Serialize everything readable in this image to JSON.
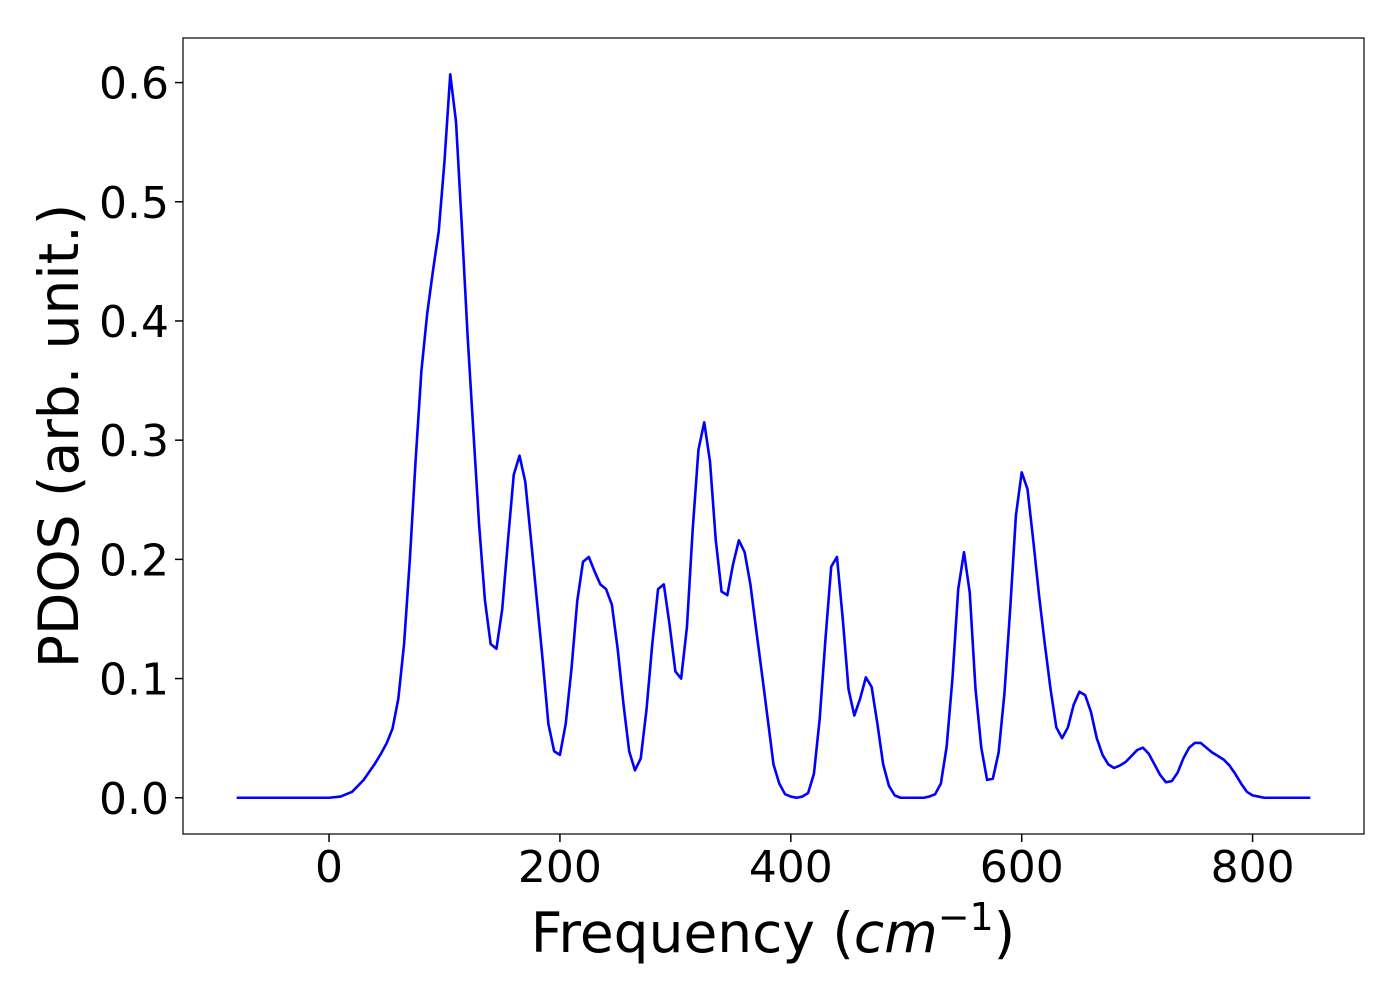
{
  "chart_data": {
    "type": "line",
    "x_label_parts": [
      "Frequency (",
      "cm",
      "−1",
      ")"
    ],
    "y_label": "PDOS (arb. unit.)",
    "x": [
      -80,
      0,
      10,
      20,
      30,
      40,
      45,
      50,
      55,
      60,
      65,
      70,
      75,
      80,
      85,
      90,
      95,
      100,
      105,
      110,
      115,
      120,
      125,
      130,
      135,
      140,
      145,
      150,
      155,
      160,
      165,
      170,
      175,
      180,
      185,
      190,
      195,
      200,
      205,
      210,
      215,
      220,
      225,
      230,
      235,
      240,
      245,
      250,
      255,
      260,
      265,
      270,
      275,
      280,
      285,
      290,
      295,
      300,
      305,
      310,
      315,
      320,
      325,
      330,
      335,
      340,
      345,
      350,
      355,
      360,
      365,
      370,
      375,
      380,
      385,
      390,
      395,
      400,
      405,
      410,
      415,
      420,
      425,
      430,
      435,
      440,
      445,
      450,
      455,
      460,
      465,
      470,
      475,
      480,
      485,
      490,
      495,
      515,
      520,
      525,
      530,
      535,
      540,
      545,
      550,
      555,
      560,
      565,
      570,
      575,
      580,
      585,
      590,
      595,
      600,
      605,
      610,
      615,
      620,
      625,
      630,
      635,
      640,
      645,
      650,
      655,
      660,
      665,
      670,
      675,
      680,
      685,
      690,
      695,
      700,
      705,
      710,
      715,
      720,
      725,
      730,
      735,
      740,
      745,
      750,
      755,
      760,
      765,
      770,
      775,
      780,
      785,
      790,
      795,
      800,
      805,
      810,
      850
    ],
    "series": [
      {
        "name": "PDOS",
        "color": "#0000ff",
        "values": [
          0,
          0,
          0.001,
          0.005,
          0.015,
          0.029,
          0.037,
          0.046,
          0.058,
          0.083,
          0.129,
          0.2,
          0.283,
          0.358,
          0.406,
          0.442,
          0.475,
          0.534,
          0.607,
          0.567,
          0.48,
          0.388,
          0.308,
          0.229,
          0.166,
          0.129,
          0.125,
          0.158,
          0.216,
          0.271,
          0.287,
          0.265,
          0.216,
          0.166,
          0.116,
          0.062,
          0.039,
          0.036,
          0.062,
          0.108,
          0.165,
          0.198,
          0.202,
          0.19,
          0.179,
          0.175,
          0.162,
          0.125,
          0.079,
          0.039,
          0.023,
          0.033,
          0.074,
          0.129,
          0.175,
          0.179,
          0.145,
          0.106,
          0.1,
          0.143,
          0.225,
          0.292,
          0.315,
          0.282,
          0.216,
          0.173,
          0.17,
          0.196,
          0.216,
          0.206,
          0.179,
          0.141,
          0.104,
          0.066,
          0.028,
          0.012,
          0.003,
          0.001,
          0,
          0.001,
          0.004,
          0.02,
          0.066,
          0.133,
          0.194,
          0.202,
          0.15,
          0.091,
          0.069,
          0.083,
          0.101,
          0.093,
          0.062,
          0.028,
          0.01,
          0.002,
          0,
          0,
          0.001,
          0.003,
          0.012,
          0.043,
          0.1,
          0.175,
          0.206,
          0.172,
          0.091,
          0.042,
          0.015,
          0.016,
          0.038,
          0.087,
          0.158,
          0.237,
          0.273,
          0.259,
          0.216,
          0.17,
          0.129,
          0.091,
          0.059,
          0.05,
          0.059,
          0.078,
          0.089,
          0.086,
          0.072,
          0.05,
          0.036,
          0.028,
          0.025,
          0.027,
          0.03,
          0.035,
          0.04,
          0.042,
          0.037,
          0.028,
          0.019,
          0.013,
          0.014,
          0.021,
          0.033,
          0.042,
          0.046,
          0.046,
          0.042,
          0.038,
          0.035,
          0.032,
          0.027,
          0.02,
          0.012,
          0.005,
          0.002,
          0.001,
          0,
          0
        ]
      }
    ],
    "xlim": [
      -126.5,
      896.5
    ],
    "xticks": [
      0,
      200,
      400,
      600,
      800
    ],
    "ylim": [
      -0.0304,
      0.6374
    ],
    "yticks": [
      {
        "value": 0,
        "label": "0.0"
      },
      0.1,
      0.2,
      0.3,
      0.4,
      0.5,
      0.6
    ],
    "grid": false
  }
}
